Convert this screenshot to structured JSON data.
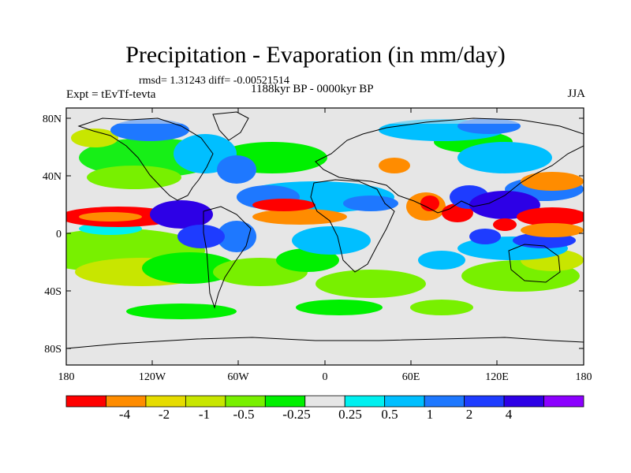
{
  "title": "Precipitation - Evaporation (in mm/day)",
  "stats": "rmsd= 1.31243 diff= -0.00521514",
  "experiment": "Expt = tEvTf-tevta",
  "period": "1188kyr BP - 0000kyr BP",
  "season": "JJA",
  "lat_labels": [
    "80N",
    "40N",
    "0",
    "40S",
    "80S"
  ],
  "lon_labels": [
    "180",
    "120W",
    "60W",
    "0",
    "60E",
    "120E",
    "180"
  ],
  "colorbar": {
    "colors": [
      "#ff0000",
      "#ff8c00",
      "#e6dc00",
      "#c8e600",
      "#78f000",
      "#00f000",
      "#e6e6e6",
      "#00f0f0",
      "#00bfff",
      "#1e78ff",
      "#1e3cff",
      "#2d00e6",
      "#8c00ff"
    ],
    "labels": [
      "-4",
      "-2",
      "-1",
      "-0.5",
      "-0.25",
      "0.25",
      "0.5",
      "1",
      "2",
      "4"
    ]
  }
}
